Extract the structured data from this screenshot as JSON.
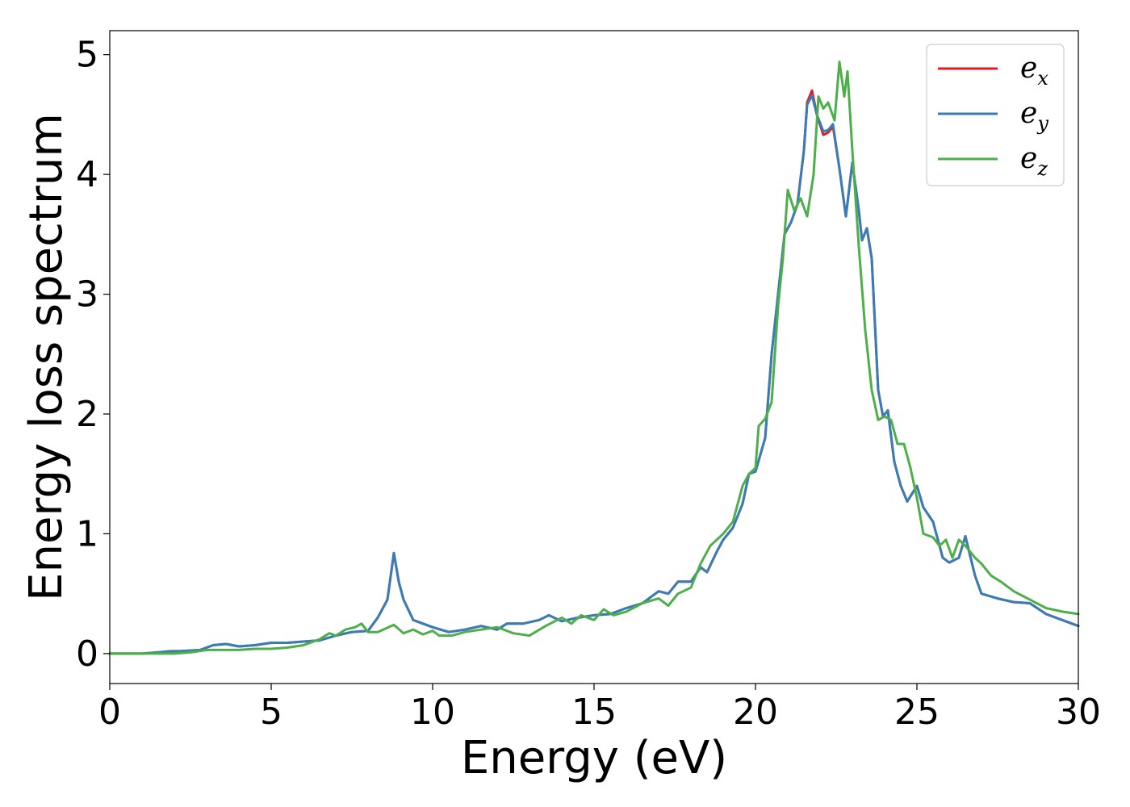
{
  "chart_data": {
    "type": "line",
    "title": "",
    "xlabel": "Energy (eV)",
    "ylabel": "Energy loss spectrum",
    "xlim": [
      0,
      30
    ],
    "ylim": [
      -0.25,
      5.2
    ],
    "xticks": [
      "0",
      "5",
      "10",
      "15",
      "20",
      "25",
      "30"
    ],
    "yticks": [
      "0",
      "1",
      "2",
      "3",
      "4",
      "5"
    ],
    "grid": false,
    "legend_position": "top-right",
    "series": [
      {
        "name": "e_x",
        "label_base": "e",
        "label_sub": "x",
        "color": "#e41a1c",
        "x": [
          0,
          1,
          1.5,
          1.9,
          2.2,
          2.8,
          3.2,
          3.6,
          4.0,
          4.5,
          5.0,
          5.5,
          6.0,
          6.5,
          7.0,
          7.5,
          8.0,
          8.3,
          8.6,
          8.8,
          8.95,
          9.1,
          9.4,
          9.7,
          10.0,
          10.5,
          11.0,
          11.5,
          12.0,
          12.3,
          12.8,
          13.3,
          13.6,
          14.0,
          14.5,
          15.0,
          15.5,
          16.0,
          16.5,
          17.0,
          17.3,
          17.6,
          18.0,
          18.3,
          18.5,
          18.8,
          19.0,
          19.3,
          19.6,
          19.8,
          20.0,
          20.3,
          20.5,
          20.7,
          20.9,
          21.1,
          21.3,
          21.5,
          21.6,
          21.75,
          21.9,
          22.1,
          22.25,
          22.4,
          22.6,
          22.8,
          23.0,
          23.2,
          23.3,
          23.45,
          23.6,
          23.8,
          23.95,
          24.1,
          24.3,
          24.5,
          24.7,
          25.0,
          25.2,
          25.5,
          25.8,
          26.0,
          26.3,
          26.5,
          26.8,
          27.0,
          27.5,
          28.0,
          28.5,
          29.0,
          29.5,
          30.0
        ],
        "y": [
          0.0,
          0.0,
          0.01,
          0.02,
          0.02,
          0.03,
          0.07,
          0.08,
          0.06,
          0.07,
          0.09,
          0.09,
          0.1,
          0.11,
          0.15,
          0.18,
          0.19,
          0.3,
          0.45,
          0.84,
          0.6,
          0.45,
          0.28,
          0.25,
          0.22,
          0.18,
          0.2,
          0.23,
          0.2,
          0.25,
          0.25,
          0.28,
          0.32,
          0.27,
          0.3,
          0.32,
          0.33,
          0.38,
          0.42,
          0.52,
          0.5,
          0.6,
          0.6,
          0.72,
          0.68,
          0.85,
          0.95,
          1.05,
          1.25,
          1.5,
          1.52,
          1.8,
          2.5,
          3.0,
          3.5,
          3.6,
          3.75,
          4.2,
          4.6,
          4.7,
          4.5,
          4.33,
          4.35,
          4.4,
          4.05,
          3.65,
          4.1,
          3.7,
          3.45,
          3.55,
          3.3,
          2.2,
          1.98,
          2.03,
          1.6,
          1.4,
          1.27,
          1.4,
          1.22,
          1.1,
          0.8,
          0.76,
          0.8,
          0.98,
          0.65,
          0.5,
          0.46,
          0.43,
          0.42,
          0.33,
          0.28,
          0.23
        ]
      },
      {
        "name": "e_y",
        "label_base": "e",
        "label_sub": "y",
        "color": "#377eb8",
        "x": [
          0,
          1,
          1.5,
          1.9,
          2.2,
          2.8,
          3.2,
          3.6,
          4.0,
          4.5,
          5.0,
          5.5,
          6.0,
          6.5,
          7.0,
          7.5,
          8.0,
          8.3,
          8.6,
          8.8,
          8.95,
          9.1,
          9.4,
          9.7,
          10.0,
          10.5,
          11.0,
          11.5,
          12.0,
          12.3,
          12.8,
          13.3,
          13.6,
          14.0,
          14.5,
          15.0,
          15.5,
          16.0,
          16.5,
          17.0,
          17.3,
          17.6,
          18.0,
          18.3,
          18.5,
          18.8,
          19.0,
          19.3,
          19.6,
          19.8,
          20.0,
          20.3,
          20.5,
          20.7,
          20.9,
          21.1,
          21.3,
          21.5,
          21.6,
          21.75,
          21.9,
          22.1,
          22.25,
          22.4,
          22.6,
          22.8,
          23.0,
          23.2,
          23.3,
          23.45,
          23.6,
          23.8,
          23.95,
          24.1,
          24.3,
          24.5,
          24.7,
          25.0,
          25.2,
          25.5,
          25.8,
          26.0,
          26.3,
          26.5,
          26.8,
          27.0,
          27.5,
          28.0,
          28.5,
          29.0,
          29.5,
          30.0
        ],
        "y": [
          0.0,
          0.0,
          0.01,
          0.02,
          0.02,
          0.03,
          0.07,
          0.08,
          0.06,
          0.07,
          0.09,
          0.09,
          0.1,
          0.11,
          0.15,
          0.18,
          0.19,
          0.3,
          0.45,
          0.84,
          0.6,
          0.45,
          0.28,
          0.25,
          0.22,
          0.18,
          0.2,
          0.23,
          0.2,
          0.25,
          0.25,
          0.28,
          0.32,
          0.27,
          0.3,
          0.32,
          0.33,
          0.38,
          0.42,
          0.52,
          0.5,
          0.6,
          0.6,
          0.72,
          0.68,
          0.85,
          0.95,
          1.05,
          1.25,
          1.5,
          1.52,
          1.8,
          2.5,
          3.0,
          3.5,
          3.6,
          3.75,
          4.2,
          4.58,
          4.66,
          4.5,
          4.36,
          4.37,
          4.42,
          4.05,
          3.65,
          4.1,
          3.7,
          3.45,
          3.55,
          3.3,
          2.2,
          1.98,
          2.03,
          1.6,
          1.4,
          1.27,
          1.4,
          1.22,
          1.1,
          0.8,
          0.76,
          0.8,
          0.98,
          0.65,
          0.5,
          0.46,
          0.43,
          0.42,
          0.33,
          0.28,
          0.23
        ]
      },
      {
        "name": "e_z",
        "label_base": "e",
        "label_sub": "z",
        "color": "#4daf4a",
        "x": [
          0,
          1,
          2,
          2.5,
          3.0,
          3.5,
          4.0,
          4.5,
          5.0,
          5.5,
          6.0,
          6.5,
          6.8,
          7.0,
          7.3,
          7.6,
          7.8,
          8.0,
          8.3,
          8.8,
          9.1,
          9.4,
          9.7,
          10.0,
          10.2,
          10.6,
          11.0,
          11.5,
          12.0,
          12.5,
          13.0,
          13.5,
          14.0,
          14.3,
          14.6,
          15.0,
          15.3,
          15.6,
          16.0,
          16.5,
          17.0,
          17.3,
          17.6,
          18.0,
          18.3,
          18.6,
          19.0,
          19.3,
          19.6,
          19.8,
          20.0,
          20.1,
          20.3,
          20.5,
          20.7,
          20.85,
          21.0,
          21.2,
          21.4,
          21.6,
          21.8,
          21.95,
          22.1,
          22.25,
          22.45,
          22.6,
          22.75,
          22.85,
          23.0,
          23.2,
          23.4,
          23.6,
          23.8,
          24.0,
          24.2,
          24.4,
          24.6,
          24.8,
          25.0,
          25.2,
          25.5,
          25.7,
          25.9,
          26.1,
          26.3,
          26.5,
          26.8,
          27.0,
          27.3,
          27.6,
          28.0,
          28.5,
          29.0,
          29.5,
          30.0
        ],
        "y": [
          0.0,
          0.0,
          0.0,
          0.01,
          0.03,
          0.03,
          0.03,
          0.04,
          0.04,
          0.05,
          0.07,
          0.12,
          0.17,
          0.15,
          0.2,
          0.22,
          0.25,
          0.18,
          0.18,
          0.24,
          0.17,
          0.2,
          0.16,
          0.19,
          0.15,
          0.15,
          0.18,
          0.2,
          0.22,
          0.17,
          0.15,
          0.23,
          0.3,
          0.25,
          0.32,
          0.28,
          0.37,
          0.32,
          0.35,
          0.42,
          0.46,
          0.4,
          0.5,
          0.55,
          0.75,
          0.9,
          1.0,
          1.1,
          1.4,
          1.5,
          1.55,
          1.9,
          1.96,
          2.1,
          2.9,
          3.3,
          3.87,
          3.7,
          3.8,
          3.65,
          4.0,
          4.65,
          4.55,
          4.6,
          4.45,
          4.94,
          4.65,
          4.86,
          4.2,
          3.4,
          2.7,
          2.2,
          1.95,
          1.98,
          1.95,
          1.75,
          1.75,
          1.55,
          1.3,
          1.0,
          0.97,
          0.9,
          0.95,
          0.8,
          0.95,
          0.9,
          0.8,
          0.75,
          0.65,
          0.6,
          0.52,
          0.45,
          0.38,
          0.35,
          0.33
        ]
      }
    ]
  }
}
